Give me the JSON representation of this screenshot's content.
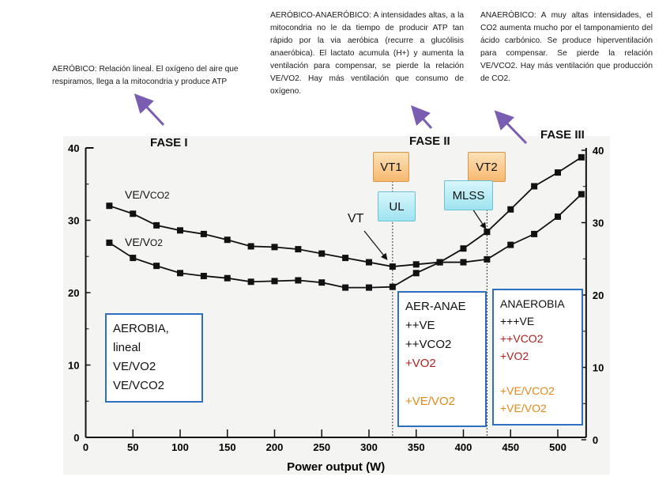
{
  "notes": {
    "aerobic": "AERÓBICO: Relación lineal. El oxígeno del aire que respiramos, llega a la mitocondria y produce ATP",
    "aerobic_anaerobic": "AERÓBICO-ANAERÓBICO: A intensidades altas, a la mitocondria no le da tiempo de producir ATP tan rápido por la via aeróbica (recurre a glucólisis anaeróbica). El lactato acumula (H+) y aumenta la ventilación para compensar, se pierde la relación VE/VO2. Hay más ventilación que consumo de oxígeno.",
    "anaerobic": "ANAERÓBICO: A muy altas intensidades, el CO2 aumenta mucho por el tamponamiento del ácido carbónico. Se produce hiperventilación para compensar. Se pierde la relación VE/VCO2. Hay más ventilación que producción de CO2."
  },
  "phases": [
    "FASE I",
    "FASE II",
    "FASE III"
  ],
  "markers": {
    "vt1": "VT1",
    "vt2": "VT2",
    "ul": "UL",
    "mlss": "MLSS",
    "vt": "VT"
  },
  "boxes": {
    "aerobia": [
      "AEROBIA,",
      "lineal",
      "VE/VO2",
      "VE/VCO2"
    ],
    "aer_anae": {
      "title": "AER-ANAE",
      "l1": "++VE",
      "l2": "++VCO2",
      "l3": "+VO2",
      "l4": "+VE/VO2"
    },
    "anaerobia": {
      "title": "ANAEROBIA",
      "l1": "+++VE",
      "l2": "++VCO2",
      "l3": "+VO2",
      "l4": "+VE/VCO2",
      "l5": "+VE/VO2"
    }
  },
  "colors": {
    "arrow": "#7a5cb0",
    "box_border": "#2f6fc0",
    "red_text": "#b02020",
    "orange_text": "#e08a1a"
  },
  "chart_data": {
    "type": "line",
    "xlabel": "Power output (W)",
    "xlim": [
      0,
      530
    ],
    "ylim": [
      0,
      40
    ],
    "y2lim": [
      0,
      40
    ],
    "xticks": [
      0,
      50,
      100,
      150,
      200,
      250,
      300,
      350,
      400,
      450,
      500
    ],
    "yticks": [
      0,
      10,
      20,
      30,
      40
    ],
    "vlines": [
      325,
      425
    ],
    "x": [
      25,
      50,
      75,
      100,
      125,
      150,
      175,
      200,
      225,
      250,
      275,
      300,
      325,
      350,
      375,
      400,
      425,
      450,
      475,
      500,
      525
    ],
    "series": [
      {
        "name": "VE/VCO2",
        "label_main": "VE/V",
        "label_sub": "CO2",
        "values": [
          32.0,
          30.9,
          29.3,
          28.6,
          28.1,
          27.3,
          26.4,
          26.3,
          26.0,
          25.4,
          24.8,
          24.2,
          23.6,
          23.9,
          24.2,
          24.2,
          24.6,
          26.6,
          28.1,
          30.5,
          33.6
        ]
      },
      {
        "name": "VE/VO2",
        "label_main": "VE/V",
        "label_sub": "O2",
        "values": [
          26.9,
          24.8,
          23.7,
          22.7,
          22.3,
          22.0,
          21.5,
          21.6,
          21.7,
          21.4,
          20.7,
          20.7,
          20.8,
          22.7,
          24.2,
          26.1,
          28.4,
          31.5,
          34.7,
          36.6,
          38.7
        ]
      }
    ]
  }
}
